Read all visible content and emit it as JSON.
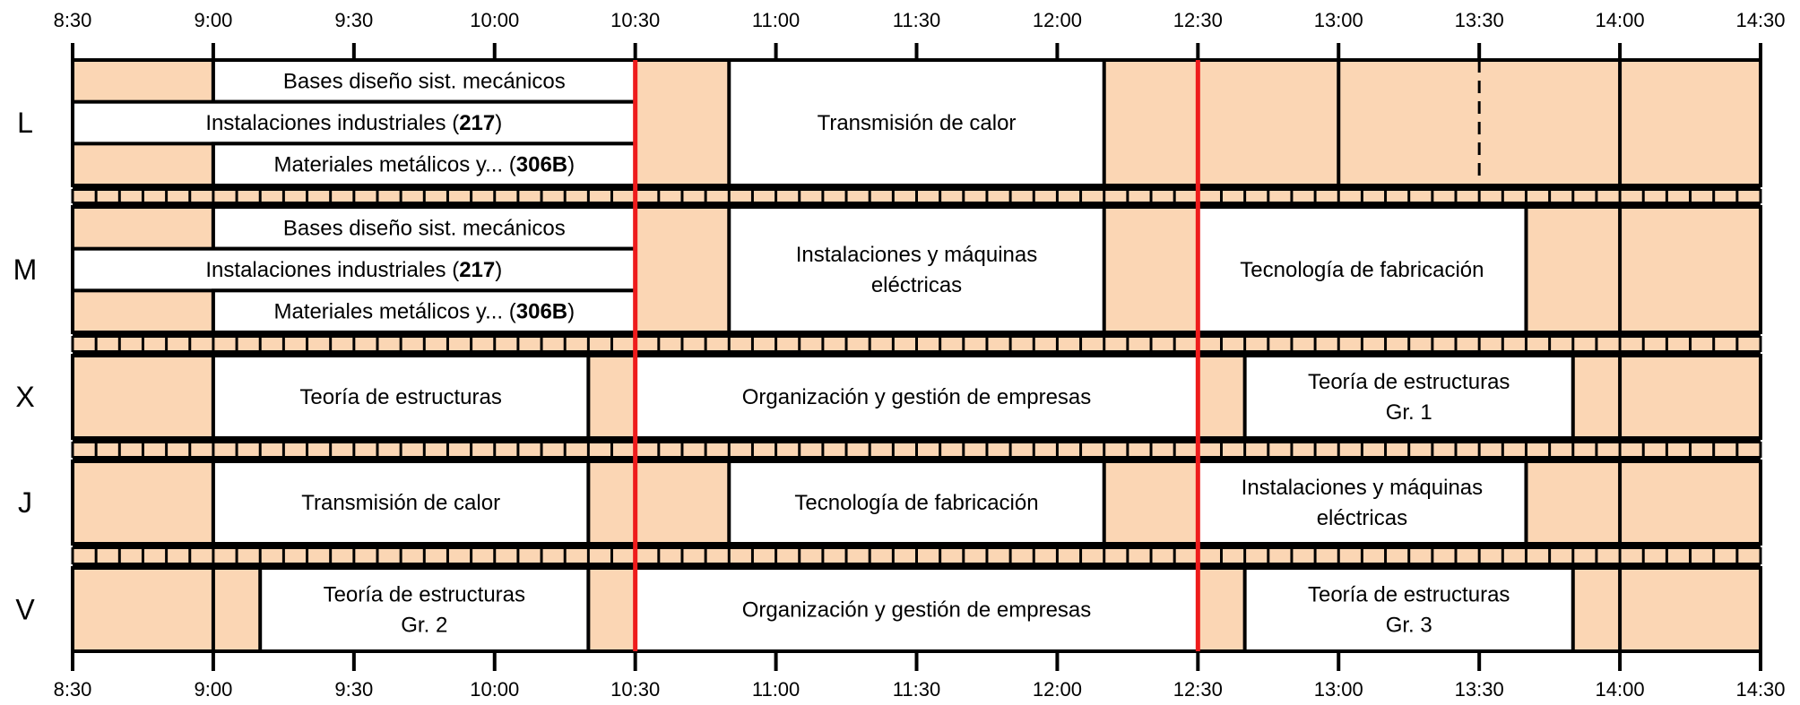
{
  "colors": {
    "background": "#ffffff",
    "free_slot": "#fbd6b4",
    "class_block": "#ffffff",
    "border": "#000000",
    "highlight_line": "#ee1c1c"
  },
  "timetable": {
    "time_range": [
      "8:30",
      "14:30"
    ],
    "time_labels": [
      "8:30",
      "9:00",
      "9:30",
      "10:00",
      "10:30",
      "11:00",
      "11:30",
      "12:00",
      "12:30",
      "13:00",
      "13:30",
      "14:00",
      "14:30"
    ],
    "highlight_times": [
      "10:30",
      "12:30"
    ],
    "days": [
      {
        "label": "L",
        "blocks": [
          {
            "start": "9:00",
            "end": "10:30",
            "lane": 0,
            "lanes": 3,
            "text": [
              "Bases diseño sist. mecánicos"
            ]
          },
          {
            "start": "8:30",
            "end": "10:30",
            "lane": 1,
            "lanes": 3,
            "text": [
              "Instalaciones industriales ("
            ],
            "bold": "217",
            "suffix": ")"
          },
          {
            "start": "9:00",
            "end": "10:30",
            "lane": 2,
            "lanes": 3,
            "text": [
              "Materiales metálicos y... ("
            ],
            "bold": "306B",
            "suffix": ")"
          },
          {
            "start": "10:50",
            "end": "12:10",
            "text": [
              "Transmisión de calor"
            ]
          }
        ]
      },
      {
        "label": "M",
        "blocks": [
          {
            "start": "9:00",
            "end": "10:30",
            "lane": 0,
            "lanes": 3,
            "text": [
              "Bases diseño sist. mecánicos"
            ]
          },
          {
            "start": "8:30",
            "end": "10:30",
            "lane": 1,
            "lanes": 3,
            "text": [
              "Instalaciones industriales ("
            ],
            "bold": "217",
            "suffix": ")"
          },
          {
            "start": "9:00",
            "end": "10:30",
            "lane": 2,
            "lanes": 3,
            "text": [
              "Materiales metálicos y... ("
            ],
            "bold": "306B",
            "suffix": ")"
          },
          {
            "start": "10:50",
            "end": "12:10",
            "text": [
              "Instalaciones y máquinas",
              "eléctricas"
            ]
          },
          {
            "start": "12:30",
            "end": "13:40",
            "text": [
              "Tecnología de fabricación"
            ]
          }
        ]
      },
      {
        "label": "X",
        "blocks": [
          {
            "start": "9:00",
            "end": "10:20",
            "text": [
              "Teoría de estructuras"
            ]
          },
          {
            "start": "10:30",
            "end": "12:30",
            "text": [
              "Organización y gestión de empresas"
            ]
          },
          {
            "start": "12:40",
            "end": "13:50",
            "text": [
              "Teoría de estructuras",
              "Gr. 1"
            ]
          }
        ]
      },
      {
        "label": "J",
        "blocks": [
          {
            "start": "9:00",
            "end": "10:20",
            "text": [
              "Transmisión de calor"
            ]
          },
          {
            "start": "10:50",
            "end": "12:10",
            "text": [
              "Tecnología de fabricación"
            ]
          },
          {
            "start": "12:30",
            "end": "13:40",
            "text": [
              "Instalaciones y máquinas",
              "eléctricas"
            ]
          }
        ]
      },
      {
        "label": "V",
        "blocks": [
          {
            "start": "9:10",
            "end": "10:20",
            "text": [
              "Teoría de estructuras",
              "Gr. 2"
            ]
          },
          {
            "start": "10:30",
            "end": "12:30",
            "text": [
              "Organización y gestión de empresas"
            ]
          },
          {
            "start": "12:40",
            "end": "13:50",
            "text": [
              "Teoría de estructuras",
              "Gr. 3"
            ]
          }
        ]
      }
    ]
  }
}
